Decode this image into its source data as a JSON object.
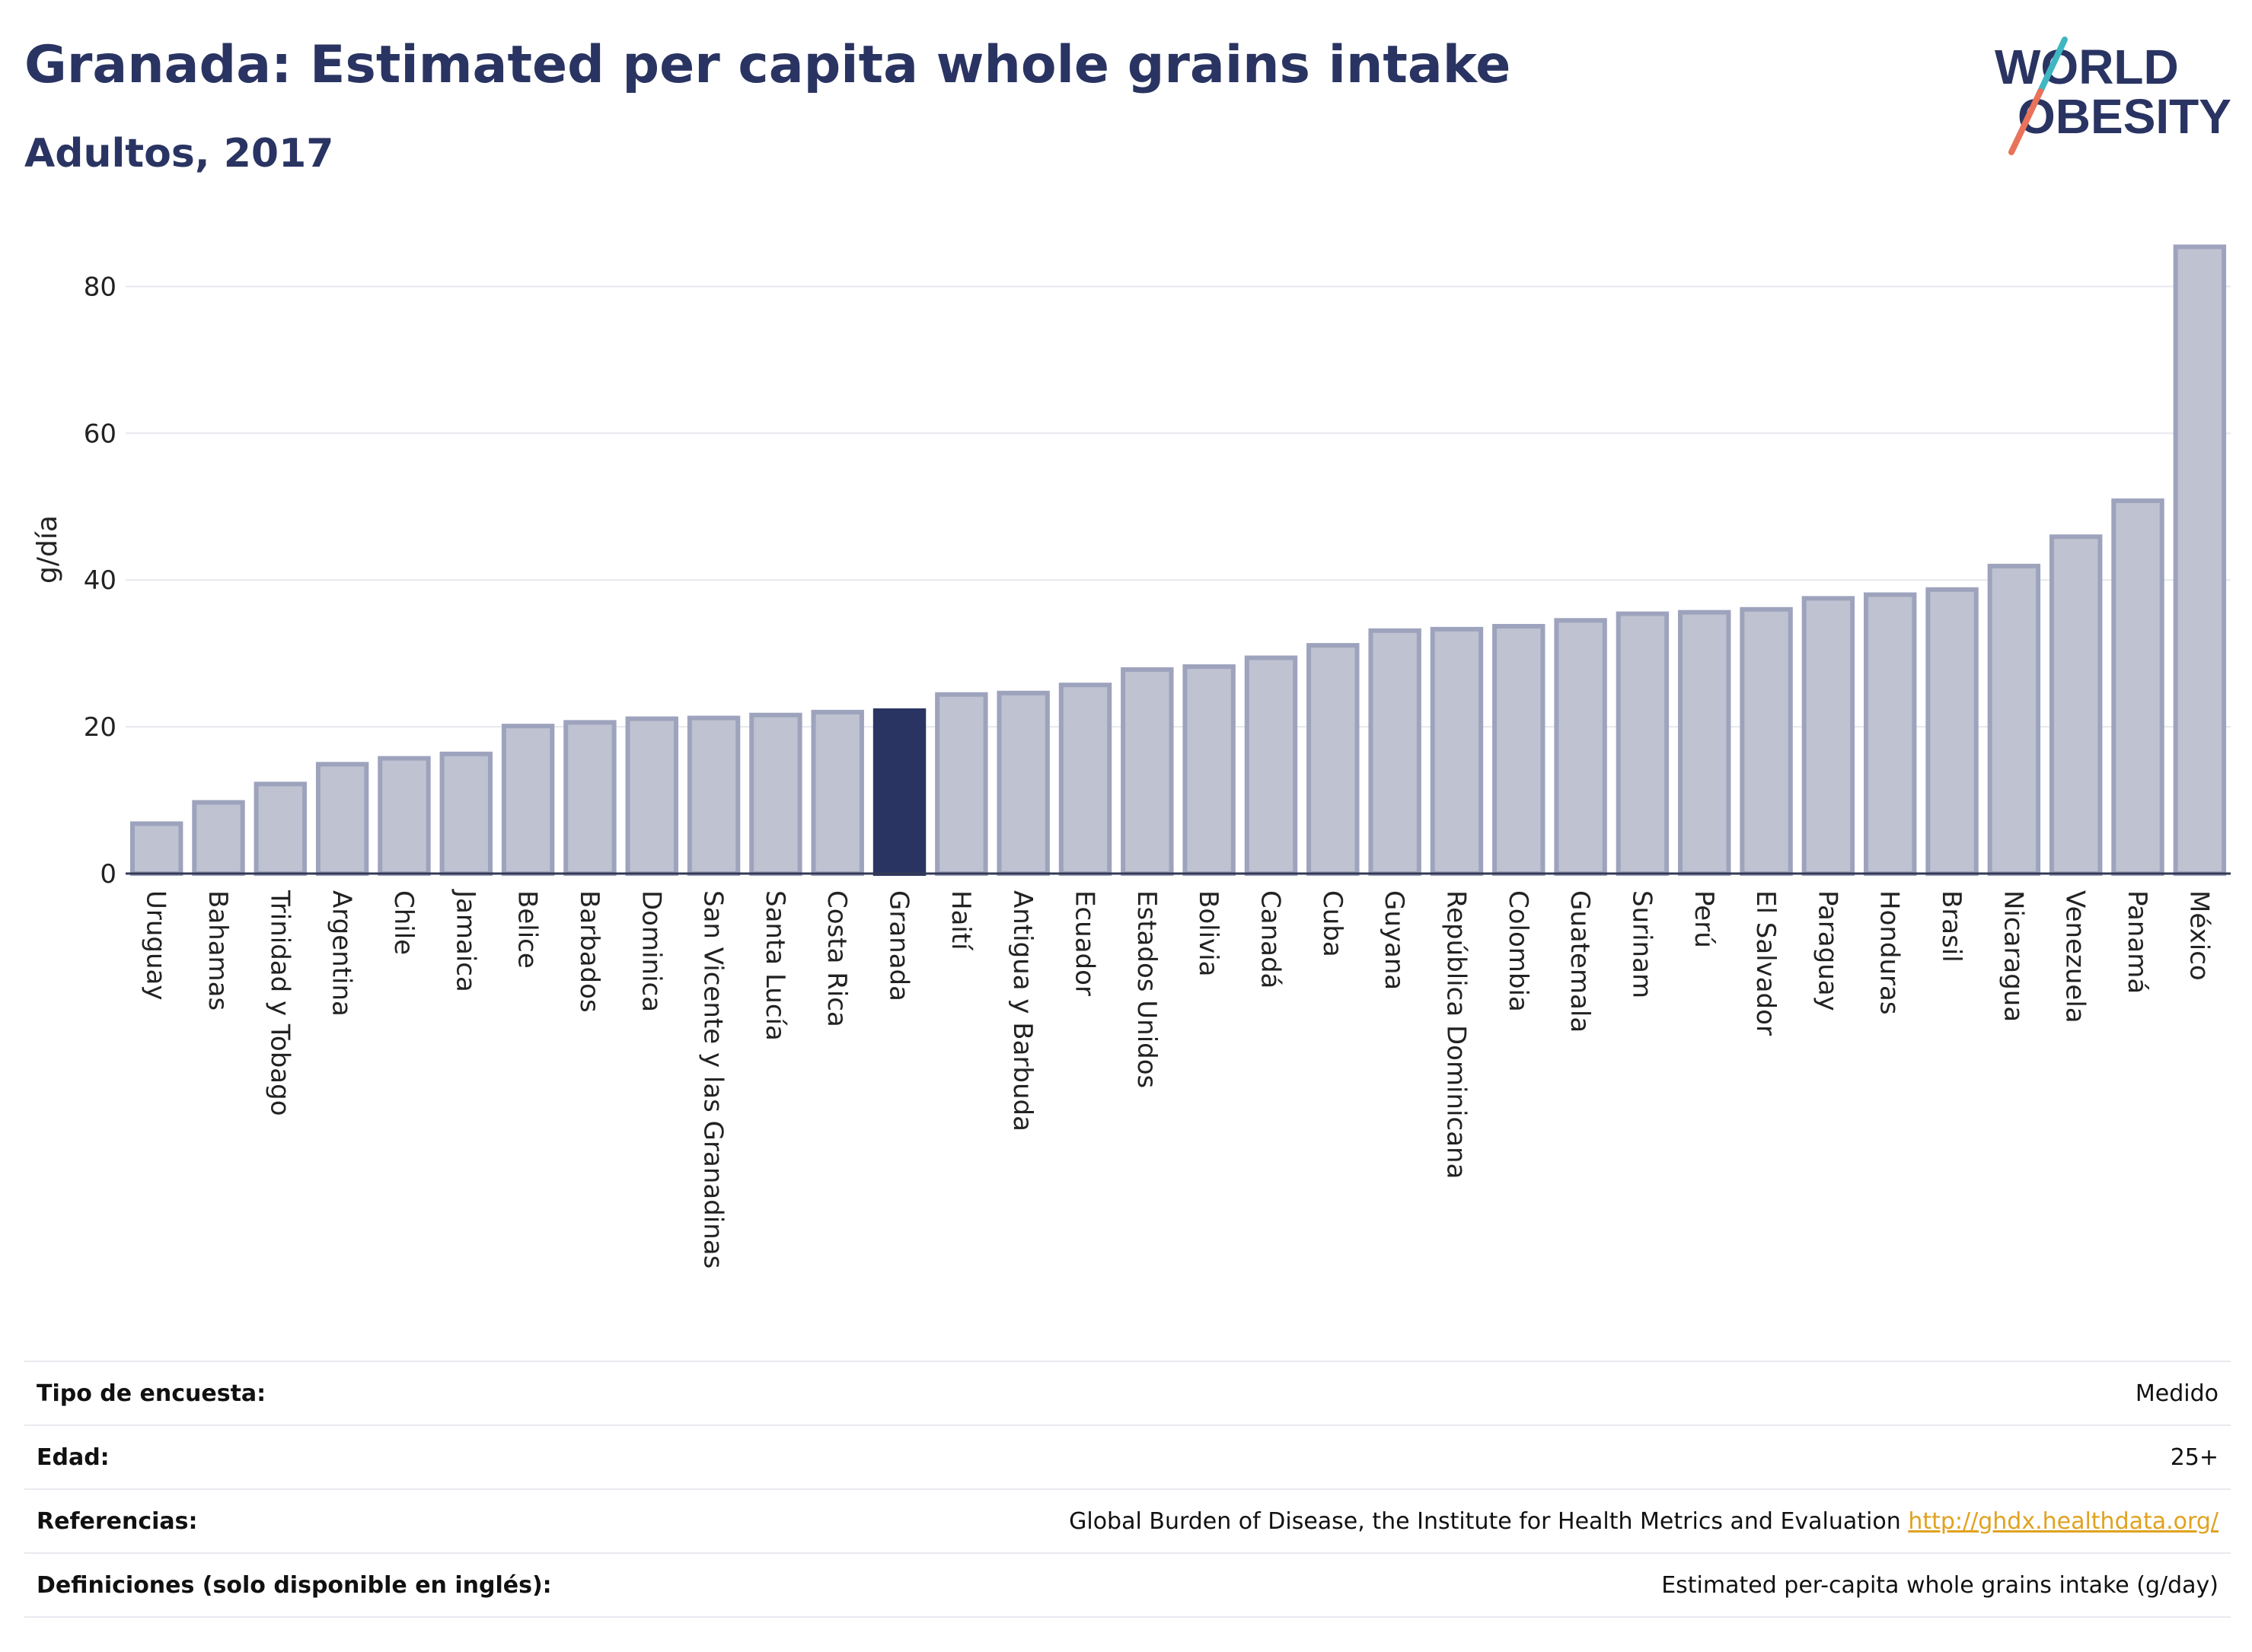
{
  "header": {
    "title": "Granada: Estimated per capita whole grains intake",
    "subtitle": "Adultos, 2017"
  },
  "logo": {
    "line1": "WORLD",
    "line2": "OBESITY",
    "slash_colors": [
      "#3fb6c2",
      "#e8735a"
    ]
  },
  "colors": {
    "highlight": "#2a3462",
    "bar_fill": "#bfc2d0",
    "bar_stroke": "#9ea3bd",
    "grid": "#e6e8ee",
    "link": "#e0a21f"
  },
  "chart_data": {
    "type": "bar",
    "title": "Granada: Estimated per capita whole grains intake",
    "subtitle": "Adultos, 2017",
    "xlabel": "",
    "ylabel": "g/día",
    "ylim": [
      0,
      90
    ],
    "yticks": [
      0,
      20,
      40,
      60,
      80
    ],
    "grid": true,
    "highlight": "Granada",
    "categories": [
      "Uruguay",
      "Bahamas",
      "Trinidad y Tobago",
      "Argentina",
      "Chile",
      "Jamaica",
      "Belice",
      "Barbados",
      "Dominica",
      "San Vicente y las Granadinas",
      "Santa Lucía",
      "Costa Rica",
      "Granada",
      "Haití",
      "Antigua y Barbuda",
      "Ecuador",
      "Estados Unidos",
      "Bolivia",
      "Canadá",
      "Cuba",
      "Guyana",
      "República Dominicana",
      "Colombia",
      "Guatemala",
      "Surinam",
      "Perú",
      "El Salvador",
      "Paraguay",
      "Honduras",
      "Brasil",
      "Nicaragua",
      "Venezuela",
      "Panamá",
      "México"
    ],
    "values": [
      6.8,
      9.7,
      12.2,
      14.9,
      15.7,
      16.3,
      20.1,
      20.6,
      21.1,
      21.2,
      21.6,
      22.0,
      22.2,
      24.4,
      24.6,
      25.7,
      27.8,
      28.2,
      29.4,
      31.1,
      33.1,
      33.3,
      33.7,
      34.5,
      35.4,
      35.6,
      36.0,
      37.5,
      38.0,
      38.7,
      41.9,
      45.9,
      50.8,
      85.4
    ]
  },
  "info": {
    "rows": [
      {
        "label": "Tipo de encuesta:",
        "value": "Medido"
      },
      {
        "label": "Edad:",
        "value": "25+"
      },
      {
        "label": "Referencias:",
        "value": "Global Burden of Disease, the Institute for Health Metrics and Evaluation",
        "link": "http://ghdx.healthdata.org/"
      },
      {
        "label": "Definiciones (solo disponible en inglés):",
        "value": "Estimated per-capita whole grains intake (g/day)"
      }
    ]
  }
}
